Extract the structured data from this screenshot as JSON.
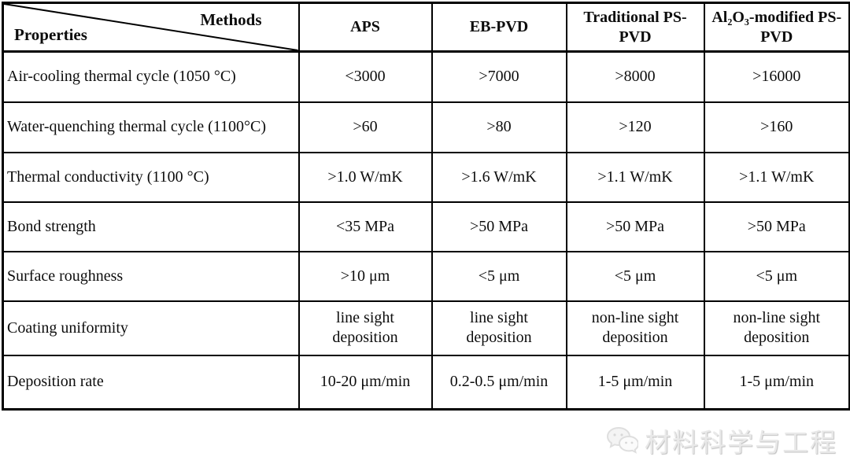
{
  "table": {
    "corner": {
      "top_label": "Methods",
      "bottom_label": "Properties"
    },
    "columns": [
      "APS",
      "EB-PVD",
      "Traditional PS-PVD",
      "Al₂O₃-modified PS-PVD"
    ],
    "rows": [
      {
        "property": "Air-cooling thermal cycle (1050 °C)",
        "values": [
          "<3000",
          ">7000",
          ">8000",
          ">16000"
        ]
      },
      {
        "property": "Water-quenching thermal cycle (1100°C)",
        "values": [
          ">60",
          ">80",
          ">120",
          ">160"
        ]
      },
      {
        "property": "Thermal conductivity (1100 °C)",
        "values": [
          ">1.0 W/mK",
          ">1.6 W/mK",
          ">1.1 W/mK",
          ">1.1 W/mK"
        ]
      },
      {
        "property": "Bond strength",
        "values": [
          "<35 MPa",
          ">50 MPa",
          ">50 MPa",
          ">50 MPa"
        ]
      },
      {
        "property": "Surface roughness",
        "values": [
          ">10 μm",
          "<5 μm",
          "<5 μm",
          "<5 μm"
        ]
      },
      {
        "property": "Coating uniformity",
        "values": [
          "line sight deposition",
          "line sight deposition",
          "non-line sight deposition",
          "non-line sight deposition"
        ]
      },
      {
        "property": "Deposition rate",
        "values": [
          "10-20 μm/min",
          "0.2-0.5 μm/min",
          "1-5 μm/min",
          "1-5 μm/min"
        ]
      }
    ]
  },
  "watermark": {
    "text": "材料科学与工程",
    "icon": "wechat-icon"
  },
  "colors": {
    "border": "#000000",
    "text": "#0d0d0d",
    "watermark": "#e9e9e9"
  }
}
